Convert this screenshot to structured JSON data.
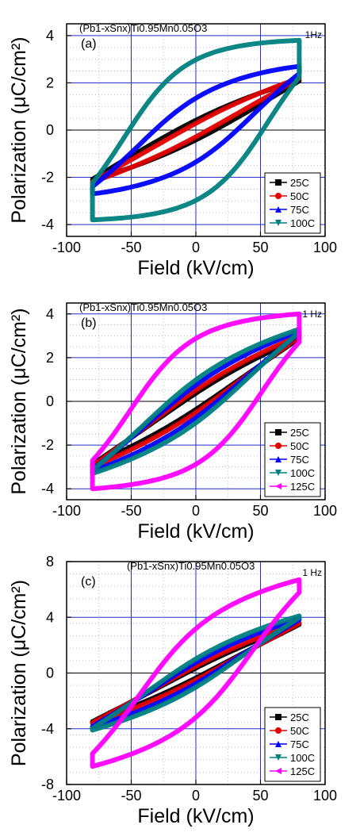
{
  "chart_data": [
    {
      "type": "scatter",
      "panel": "(a)",
      "formula": "(Pb1-xSnx)Ti0.95Mn0.05O3",
      "frequency": "1Hz",
      "xlabel": "Field (kV/cm)",
      "ylabel": "Polarization (μC/cm²)",
      "xlim": [
        -100,
        100
      ],
      "ylim": [
        -4.5,
        4.5
      ],
      "xticks": [
        -100,
        -50,
        0,
        50,
        100
      ],
      "yticks": [
        -4,
        -2,
        0,
        2,
        4
      ],
      "grid": true,
      "legend_position": "lower-right",
      "series": [
        {
          "name": "25C",
          "color": "#000000",
          "marker": "square",
          "Ps": 2.1,
          "Pr": 0.75,
          "Ec": -20,
          "bulge": 0.08
        },
        {
          "name": "50C",
          "color": "#e30000",
          "marker": "circle",
          "Ps": 2.2,
          "Pr": 0.5,
          "Ec": -12,
          "bulge": 0.1
        },
        {
          "name": "75C",
          "color": "#0000ff",
          "marker": "triangle-up",
          "Ps": 2.7,
          "Pr": 1.8,
          "Ec": -38,
          "bulge": 0.45
        },
        {
          "name": "100C",
          "color": "#008080",
          "marker": "triangle-down",
          "Ps": 3.8,
          "Pr": 3.0,
          "Ec": -55,
          "bulge": 0.85
        }
      ]
    },
    {
      "type": "scatter",
      "panel": "(b)",
      "formula": "(Pb1-xSnx)Ti0.95Mn0.05O3",
      "frequency": "1 Hz",
      "xlabel": "Field (kV/cm)",
      "ylabel": "Polarization (μC/cm²)",
      "xlim": [
        -100,
        100
      ],
      "ylim": [
        -4.5,
        4.5
      ],
      "xticks": [
        -100,
        -50,
        0,
        50,
        100
      ],
      "yticks": [
        -4,
        -2,
        0,
        2,
        4
      ],
      "grid": true,
      "legend_position": "lower-right",
      "series": [
        {
          "name": "25C",
          "color": "#000000",
          "marker": "square",
          "Ps": 2.9,
          "Pr": 0.6,
          "Ec": -15,
          "bulge": 0.1
        },
        {
          "name": "50C",
          "color": "#e30000",
          "marker": "circle",
          "Ps": 3.0,
          "Pr": 0.8,
          "Ec": -20,
          "bulge": 0.12
        },
        {
          "name": "75C",
          "color": "#0000ff",
          "marker": "triangle-up",
          "Ps": 3.2,
          "Pr": 1.1,
          "Ec": -25,
          "bulge": 0.18
        },
        {
          "name": "100C",
          "color": "#008080",
          "marker": "triangle-down",
          "Ps": 3.3,
          "Pr": 1.3,
          "Ec": -30,
          "bulge": 0.25
        },
        {
          "name": "125C",
          "color": "#ff00ff",
          "marker": "triangle-left",
          "Ps": 4.0,
          "Pr": 2.6,
          "Ec": -50,
          "bulge": 0.8
        }
      ]
    },
    {
      "type": "scatter",
      "panel": "(c)",
      "formula": "(Pb1-xSnx)Ti0.95Mn0.05O3",
      "frequency": "1 Hz",
      "xlabel": "Field (kV/cm)",
      "ylabel": "Polarization (μC/cm²)",
      "xlim": [
        -100,
        100
      ],
      "ylim": [
        -8,
        8
      ],
      "xticks": [
        -100,
        -50,
        0,
        50,
        100
      ],
      "yticks": [
        -8,
        -4,
        0,
        4,
        8
      ],
      "grid": true,
      "legend_position": "lower-right",
      "series": [
        {
          "name": "25C",
          "color": "#000000",
          "marker": "square",
          "Ps": 3.5,
          "Pr": 0.6,
          "Ec": -10,
          "bulge": 0.1
        },
        {
          "name": "50C",
          "color": "#e30000",
          "marker": "circle",
          "Ps": 3.6,
          "Pr": 0.8,
          "Ec": -15,
          "bulge": 0.12
        },
        {
          "name": "75C",
          "color": "#0000ff",
          "marker": "triangle-up",
          "Ps": 3.9,
          "Pr": 1.1,
          "Ec": -20,
          "bulge": 0.18
        },
        {
          "name": "100C",
          "color": "#008080",
          "marker": "triangle-down",
          "Ps": 4.1,
          "Pr": 1.4,
          "Ec": -25,
          "bulge": 0.22
        },
        {
          "name": "125C",
          "color": "#ff00ff",
          "marker": "triangle-left",
          "Ps": 6.7,
          "Pr": 3.0,
          "Ec": -40,
          "bulge": 0.5
        }
      ]
    }
  ]
}
